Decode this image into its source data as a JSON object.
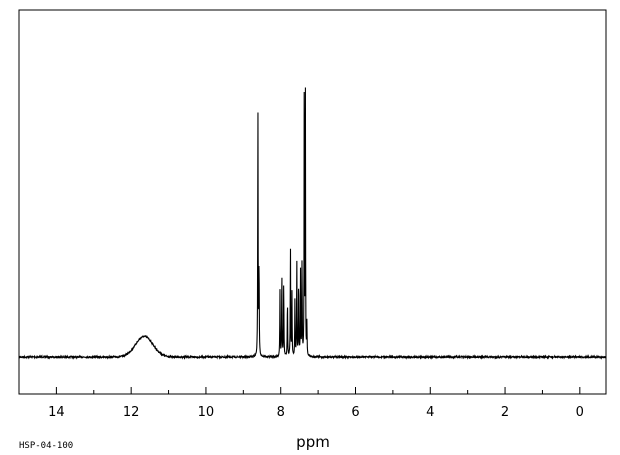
{
  "chart_data": {
    "type": "line",
    "xlabel": "ppm",
    "ylabel": "",
    "xlim": [
      15.0,
      -0.7
    ],
    "x_reversed": true,
    "x_ticks": [
      14,
      12,
      10,
      8,
      6,
      4,
      2,
      0
    ],
    "x_tick_labels": [
      "14",
      "12",
      "10",
      "8",
      "6",
      "4",
      "2",
      "0"
    ],
    "x_minor_step": 1,
    "grid": false,
    "legend": "none",
    "baseline": 0,
    "series": [
      {
        "color": "#000000",
        "peaks": [
          {
            "shift": 11.65,
            "intensity": 0.065,
            "width": 0.55,
            "shape": "broad"
          },
          {
            "shift": 8.61,
            "intensity": 0.79,
            "width": 0.012
          },
          {
            "shift": 8.58,
            "intensity": 0.3,
            "width": 0.012
          },
          {
            "shift": 8.02,
            "intensity": 0.21,
            "width": 0.012
          },
          {
            "shift": 7.97,
            "intensity": 0.28,
            "width": 0.012
          },
          {
            "shift": 7.92,
            "intensity": 0.24,
            "width": 0.012
          },
          {
            "shift": 7.82,
            "intensity": 0.18,
            "width": 0.012
          },
          {
            "shift": 7.74,
            "intensity": 0.35,
            "width": 0.012
          },
          {
            "shift": 7.7,
            "intensity": 0.2,
            "width": 0.012
          },
          {
            "shift": 7.62,
            "intensity": 0.18,
            "width": 0.012
          },
          {
            "shift": 7.57,
            "intensity": 0.31,
            "width": 0.012
          },
          {
            "shift": 7.52,
            "intensity": 0.25,
            "width": 0.012
          },
          {
            "shift": 7.47,
            "intensity": 0.27,
            "width": 0.012
          },
          {
            "shift": 7.43,
            "intensity": 0.3,
            "width": 0.012
          },
          {
            "shift": 7.37,
            "intensity": 1.0,
            "width": 0.01
          },
          {
            "shift": 7.34,
            "intensity": 0.82,
            "width": 0.01
          },
          {
            "shift": 7.3,
            "intensity": 0.1,
            "width": 0.012
          }
        ]
      }
    ]
  },
  "sample_id": "HSP-04-100"
}
